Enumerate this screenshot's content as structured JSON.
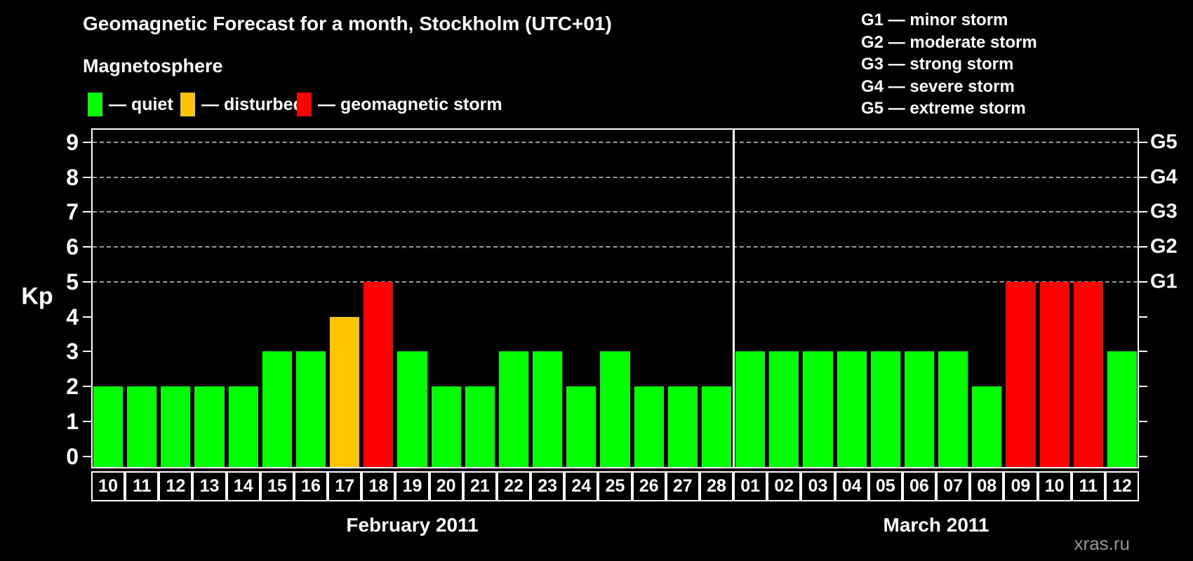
{
  "title": "Geomagnetic Forecast for a month, Stockholm (UTC+01)",
  "legend": {
    "heading": "Magnetosphere",
    "items": [
      {
        "status": "quiet",
        "label": "— quiet",
        "color": "#00ff00"
      },
      {
        "status": "disturbed",
        "label": "— disturbed",
        "color": "#ffc400"
      },
      {
        "status": "storm",
        "label": "— geomagnetic storm",
        "color": "#ff0000"
      }
    ]
  },
  "g_legend": [
    "G1 — minor storm",
    "G2 — moderate storm",
    "G3 — strong storm",
    "G4 — severe storm",
    "G5 — extreme storm"
  ],
  "watermark": "xras.ru",
  "chart_data": {
    "type": "bar",
    "title": "Geomagnetic Forecast for a month, Stockholm (UTC+01)",
    "ylabel": "Kp",
    "xlabel": "",
    "ylim": [
      -0.35,
      9.4
    ],
    "y_ticks": [
      0,
      1,
      2,
      3,
      4,
      5,
      6,
      7,
      8,
      9
    ],
    "gridlines_at": [
      5,
      6,
      7,
      8,
      9
    ],
    "grid": "horizontal dashed gridlines only at Kp 5-9 (G1-G5 levels)",
    "legend_position": "top-left (status colors) and top-right (G scale)",
    "right_axis": [
      {
        "label": "G1",
        "kp": 5
      },
      {
        "label": "G2",
        "kp": 6
      },
      {
        "label": "G3",
        "kp": 7
      },
      {
        "label": "G4",
        "kp": 8
      },
      {
        "label": "G5",
        "kp": 9
      }
    ],
    "status_colors": {
      "quiet": "#00ff00",
      "disturbed": "#ffc400",
      "storm": "#ff0000"
    },
    "months": [
      {
        "label": "February 2011",
        "days": [
          "10",
          "11",
          "12",
          "13",
          "14",
          "15",
          "16",
          "17",
          "18",
          "19",
          "20",
          "21",
          "22",
          "23",
          "24",
          "25",
          "26",
          "27",
          "28"
        ],
        "kp": [
          2,
          2,
          2,
          2,
          2,
          3,
          3,
          4,
          5,
          3,
          2,
          2,
          3,
          3,
          2,
          3,
          2,
          2,
          2
        ],
        "status": [
          "quiet",
          "quiet",
          "quiet",
          "quiet",
          "quiet",
          "quiet",
          "quiet",
          "disturbed",
          "storm",
          "quiet",
          "quiet",
          "quiet",
          "quiet",
          "quiet",
          "quiet",
          "quiet",
          "quiet",
          "quiet",
          "quiet"
        ]
      },
      {
        "label": "March 2011",
        "days": [
          "01",
          "02",
          "03",
          "04",
          "05",
          "06",
          "07",
          "08",
          "09",
          "10",
          "11",
          "12"
        ],
        "kp": [
          3,
          3,
          3,
          3,
          3,
          3,
          3,
          2,
          5,
          5,
          5,
          3
        ],
        "status": [
          "quiet",
          "quiet",
          "quiet",
          "quiet",
          "quiet",
          "quiet",
          "quiet",
          "quiet",
          "storm",
          "storm",
          "storm",
          "quiet"
        ]
      }
    ]
  }
}
